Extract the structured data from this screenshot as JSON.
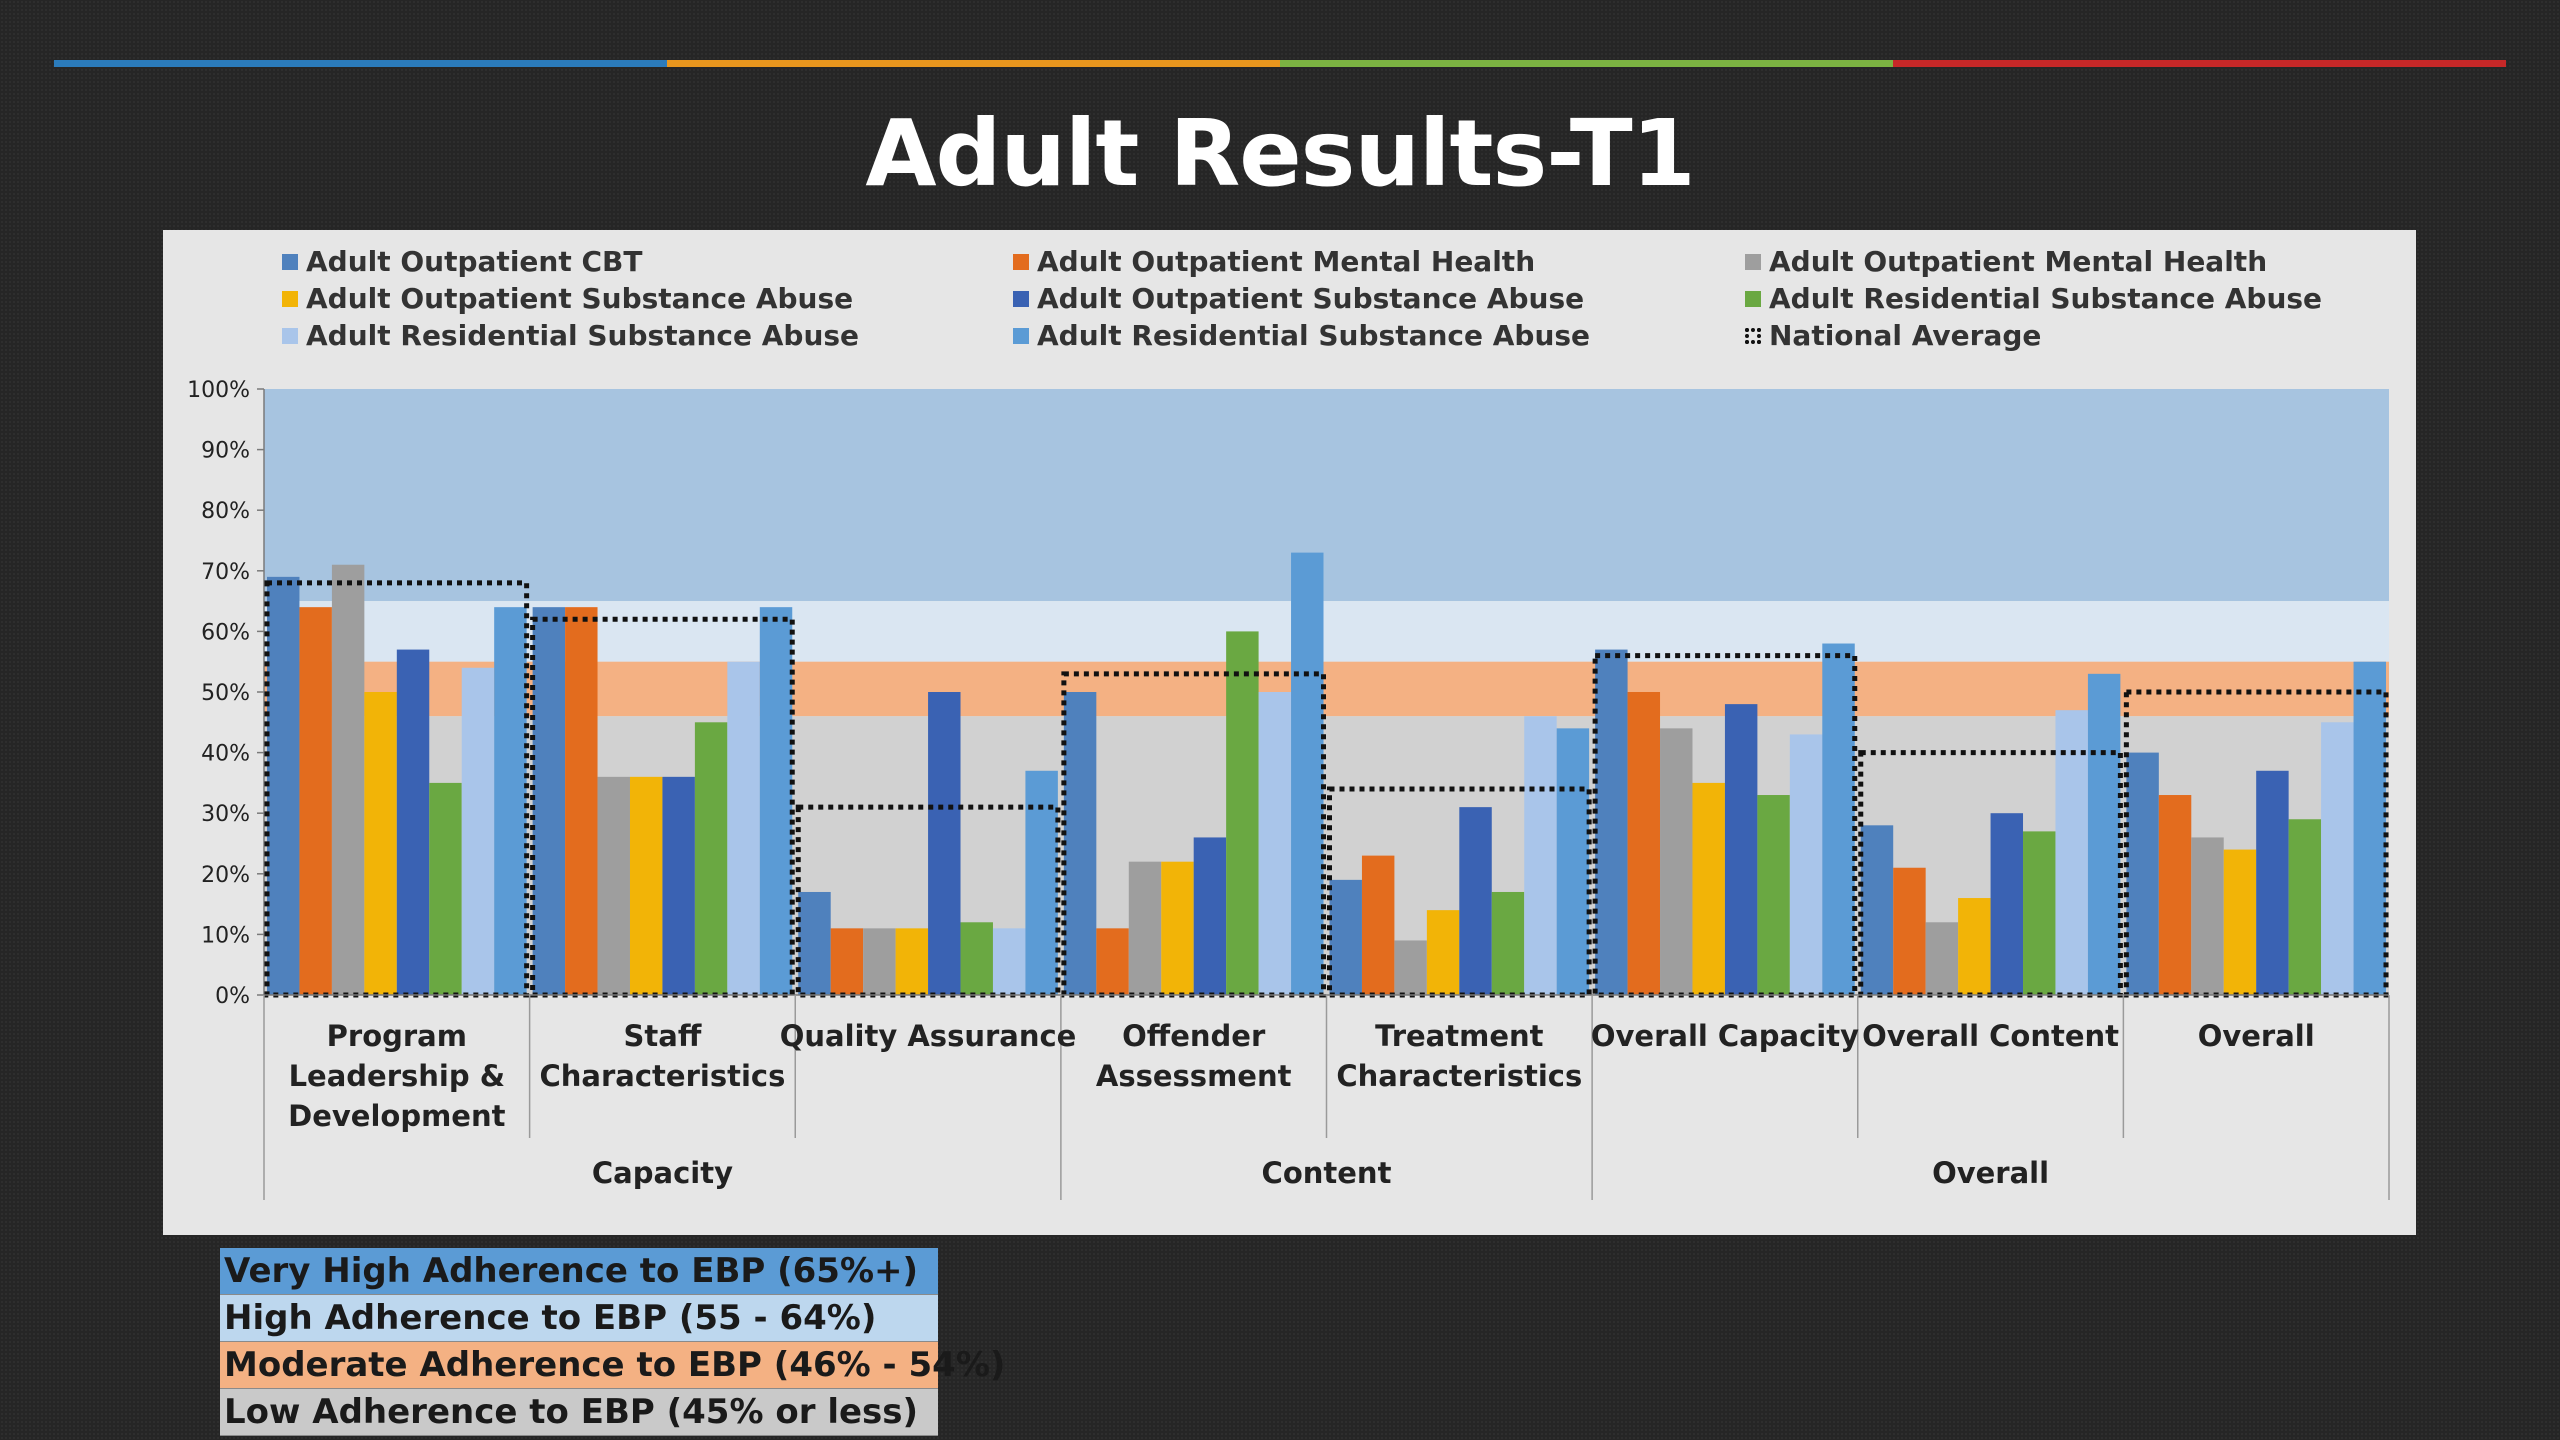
{
  "slide": {
    "title": "Adult Results-T1",
    "accent_colors": [
      "#2b7bbb",
      "#e8961e",
      "#7cb342",
      "#c62828"
    ],
    "background": "#262626"
  },
  "chart_data": {
    "type": "bar",
    "title": "",
    "xlabel": "",
    "ylabel": "",
    "ylim": [
      0,
      100
    ],
    "y_ticks": [
      "0%",
      "10%",
      "20%",
      "30%",
      "40%",
      "50%",
      "60%",
      "70%",
      "80%",
      "90%",
      "100%"
    ],
    "categories": [
      "Program Leadership & Development",
      "Staff Characteristics",
      "Quality Assurance",
      "Offender Assessment",
      "Treatment Characteristics",
      "Overall Capacity",
      "Overall Content",
      "Overall"
    ],
    "category_lines": [
      [
        "Program",
        "Leadership &",
        "Development"
      ],
      [
        "Staff",
        "Characteristics"
      ],
      [
        "Quality Assurance"
      ],
      [
        "Offender",
        "Assessment"
      ],
      [
        "Treatment",
        "Characteristics"
      ],
      [
        "Overall Capacity"
      ],
      [
        "Overall Content"
      ],
      [
        "Overall"
      ]
    ],
    "groups": [
      {
        "label": "Capacity",
        "span": [
          0,
          2
        ]
      },
      {
        "label": "Content",
        "span": [
          3,
          4
        ]
      },
      {
        "label": "Overall",
        "span": [
          5,
          7
        ]
      }
    ],
    "series": [
      {
        "name": "Adult Outpatient CBT",
        "color": "#4f81bd",
        "values": [
          69,
          64,
          17,
          50,
          19,
          57,
          28,
          40
        ]
      },
      {
        "name": "Adult Outpatient Mental Health",
        "color": "#e36c1e",
        "values": [
          64,
          64,
          11,
          11,
          23,
          50,
          21,
          33
        ]
      },
      {
        "name": "Adult Outpatient Mental Health",
        "color": "#9e9e9e",
        "values": [
          71,
          36,
          11,
          22,
          9,
          44,
          12,
          26
        ]
      },
      {
        "name": "Adult Outpatient Substance Abuse",
        "color": "#f2b407",
        "values": [
          50,
          36,
          11,
          22,
          14,
          35,
          16,
          24
        ]
      },
      {
        "name": "Adult Outpatient Substance Abuse",
        "color": "#3a62b3",
        "values": [
          57,
          36,
          50,
          26,
          31,
          48,
          30,
          37
        ]
      },
      {
        "name": "Adult Residential Substance Abuse",
        "color": "#6aa842",
        "values": [
          35,
          45,
          12,
          60,
          17,
          33,
          27,
          29
        ]
      },
      {
        "name": "Adult Residential Substance Abuse",
        "color": "#a9c5ea",
        "values": [
          54,
          55,
          11,
          50,
          46,
          43,
          47,
          45
        ]
      },
      {
        "name": "Adult Residential Substance Abuse",
        "color": "#5b9bd5",
        "values": [
          64,
          64,
          37,
          73,
          44,
          58,
          53,
          55
        ]
      }
    ],
    "national_average": {
      "name": "National Average",
      "values": [
        68,
        62,
        31,
        53,
        34,
        56,
        40,
        50
      ]
    },
    "adherence_bands": [
      {
        "label": "Very High Adherence to EBP (65%+)",
        "range": [
          65,
          100
        ],
        "color": "#a7c4e0",
        "key_color": "#5b9bd5"
      },
      {
        "label": "High Adherence to EBP (55 - 64%)",
        "range": [
          55,
          65
        ],
        "color": "#dae6f2",
        "key_color": "#bdd7ee"
      },
      {
        "label": "Moderate Adherence to EBP (46% - 54%)",
        "range": [
          46,
          55
        ],
        "color": "#f4b183",
        "key_color": "#f4b183"
      },
      {
        "label": "Low Adherence to EBP (45% or less)",
        "range": [
          0,
          46
        ],
        "color": "#d1d1d1",
        "key_color": "#c9c9c9"
      }
    ],
    "legend_position": "top",
    "grid": false
  }
}
